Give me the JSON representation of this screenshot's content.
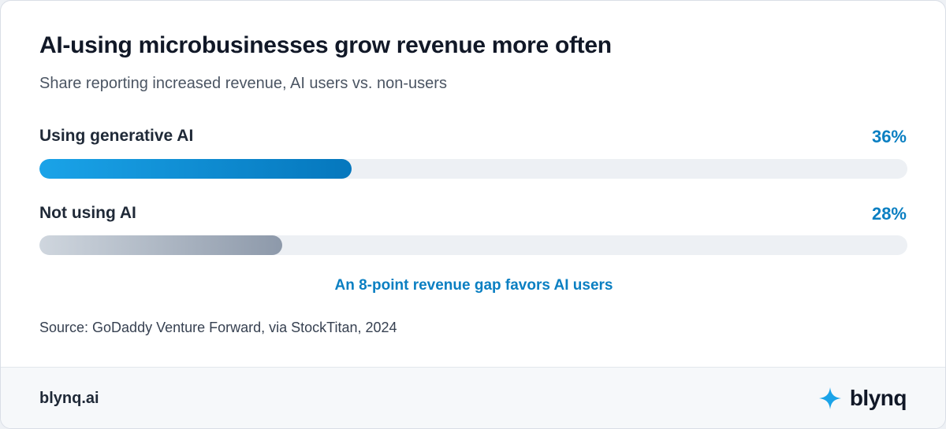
{
  "chart_data": {
    "type": "bar",
    "orientation": "horizontal",
    "title": "AI-using microbusinesses grow revenue more often",
    "subtitle": "Share reporting increased revenue, AI users vs. non-users",
    "categories": [
      "Using generative AI",
      "Not using AI"
    ],
    "values": [
      36,
      28
    ],
    "value_labels": [
      "36%",
      "28%"
    ],
    "ylim": [
      0,
      100
    ],
    "annotation": "An 8-point revenue gap favors AI users",
    "source": "Source: GoDaddy Venture Forward, via StockTitan, 2024",
    "colors": {
      "ai_bar": [
        "#1aa3e8",
        "#0577bd"
      ],
      "non_ai_bar": [
        "#cfd6de",
        "#8d99aa"
      ],
      "accent": "#0a7fc2",
      "track": "#edf0f4"
    }
  },
  "footer": {
    "url": "blynq.ai",
    "brand_name": "blynq",
    "brand_icon": "sparkle-icon"
  }
}
